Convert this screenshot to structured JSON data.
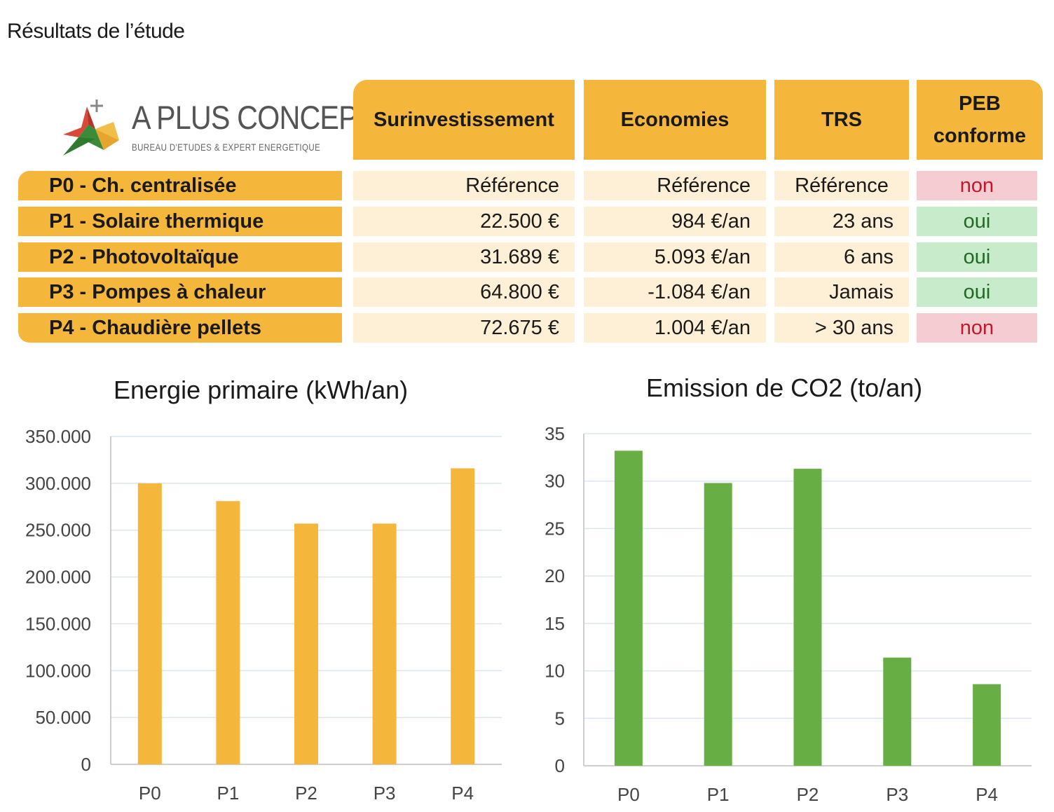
{
  "page": {
    "title": "Résultats de l’étude"
  },
  "logo": {
    "icon": "star-arrow-logo",
    "name": "A PLUS CONCEPT",
    "tagline": "BUREAU D'ETUDES & EXPERT ENERGETIQUE"
  },
  "table": {
    "headers": [
      "Surinvestissement",
      "Economies",
      "TRS",
      "PEB conforme"
    ],
    "rows": [
      {
        "label": "P0 - Ch. centralisée",
        "surinvestissement": "Référence",
        "economies": "Référence",
        "trs": "Référence",
        "peb": "non",
        "peb_ok": false
      },
      {
        "label": "P1 - Solaire thermique",
        "surinvestissement": "22.500 €",
        "economies": "984 €/an",
        "trs": "23 ans",
        "peb": "oui",
        "peb_ok": true
      },
      {
        "label": "P2 - Photovoltaïque",
        "surinvestissement": "31.689 €",
        "economies": "5.093 €/an",
        "trs": "6 ans",
        "peb": "oui",
        "peb_ok": true
      },
      {
        "label": "P3 - Pompes à chaleur",
        "surinvestissement": "64.800 €",
        "economies": "-1.084 €/an",
        "trs": "Jamais",
        "peb": "oui",
        "peb_ok": true
      },
      {
        "label": "P4 - Chaudière pellets",
        "surinvestissement": "72.675 €",
        "economies": "1.004 €/an",
        "trs": "> 30 ans",
        "peb": "non",
        "peb_ok": false
      }
    ],
    "colors": {
      "header": "#F5B63C",
      "cell": "#FDF0D6",
      "peb_no_bg": "#F6CCD3",
      "peb_no_text": "#C0192B",
      "peb_yes_bg": "#C7EBCB",
      "peb_yes_text": "#1F6B21"
    }
  },
  "chart_data": [
    {
      "type": "bar",
      "title": "Energie primaire (kWh/an)",
      "categories": [
        "P0",
        "P1",
        "P2",
        "P3",
        "P4"
      ],
      "values": [
        300000,
        281000,
        257000,
        257000,
        316000
      ],
      "ylim": [
        0,
        350000
      ],
      "yticks": [
        0,
        50000,
        100000,
        150000,
        200000,
        250000,
        300000,
        350000
      ],
      "ytick_labels": [
        "0",
        "50.000",
        "100.000",
        "150.000",
        "200.000",
        "250.000",
        "300.000",
        "350.000"
      ],
      "grid": true,
      "color": "#F5B63C"
    },
    {
      "type": "bar",
      "title": "Emission de CO2 (to/an)",
      "categories": [
        "P0",
        "P1",
        "P2",
        "P3",
        "P4"
      ],
      "values": [
        33.2,
        29.8,
        31.3,
        11.4,
        8.6
      ],
      "ylim": [
        0,
        35
      ],
      "yticks": [
        0,
        5,
        10,
        15,
        20,
        25,
        30,
        35
      ],
      "ytick_labels": [
        "0",
        "5",
        "10",
        "15",
        "20",
        "25",
        "30",
        "35"
      ],
      "grid": true,
      "color": "#67AE44"
    }
  ]
}
